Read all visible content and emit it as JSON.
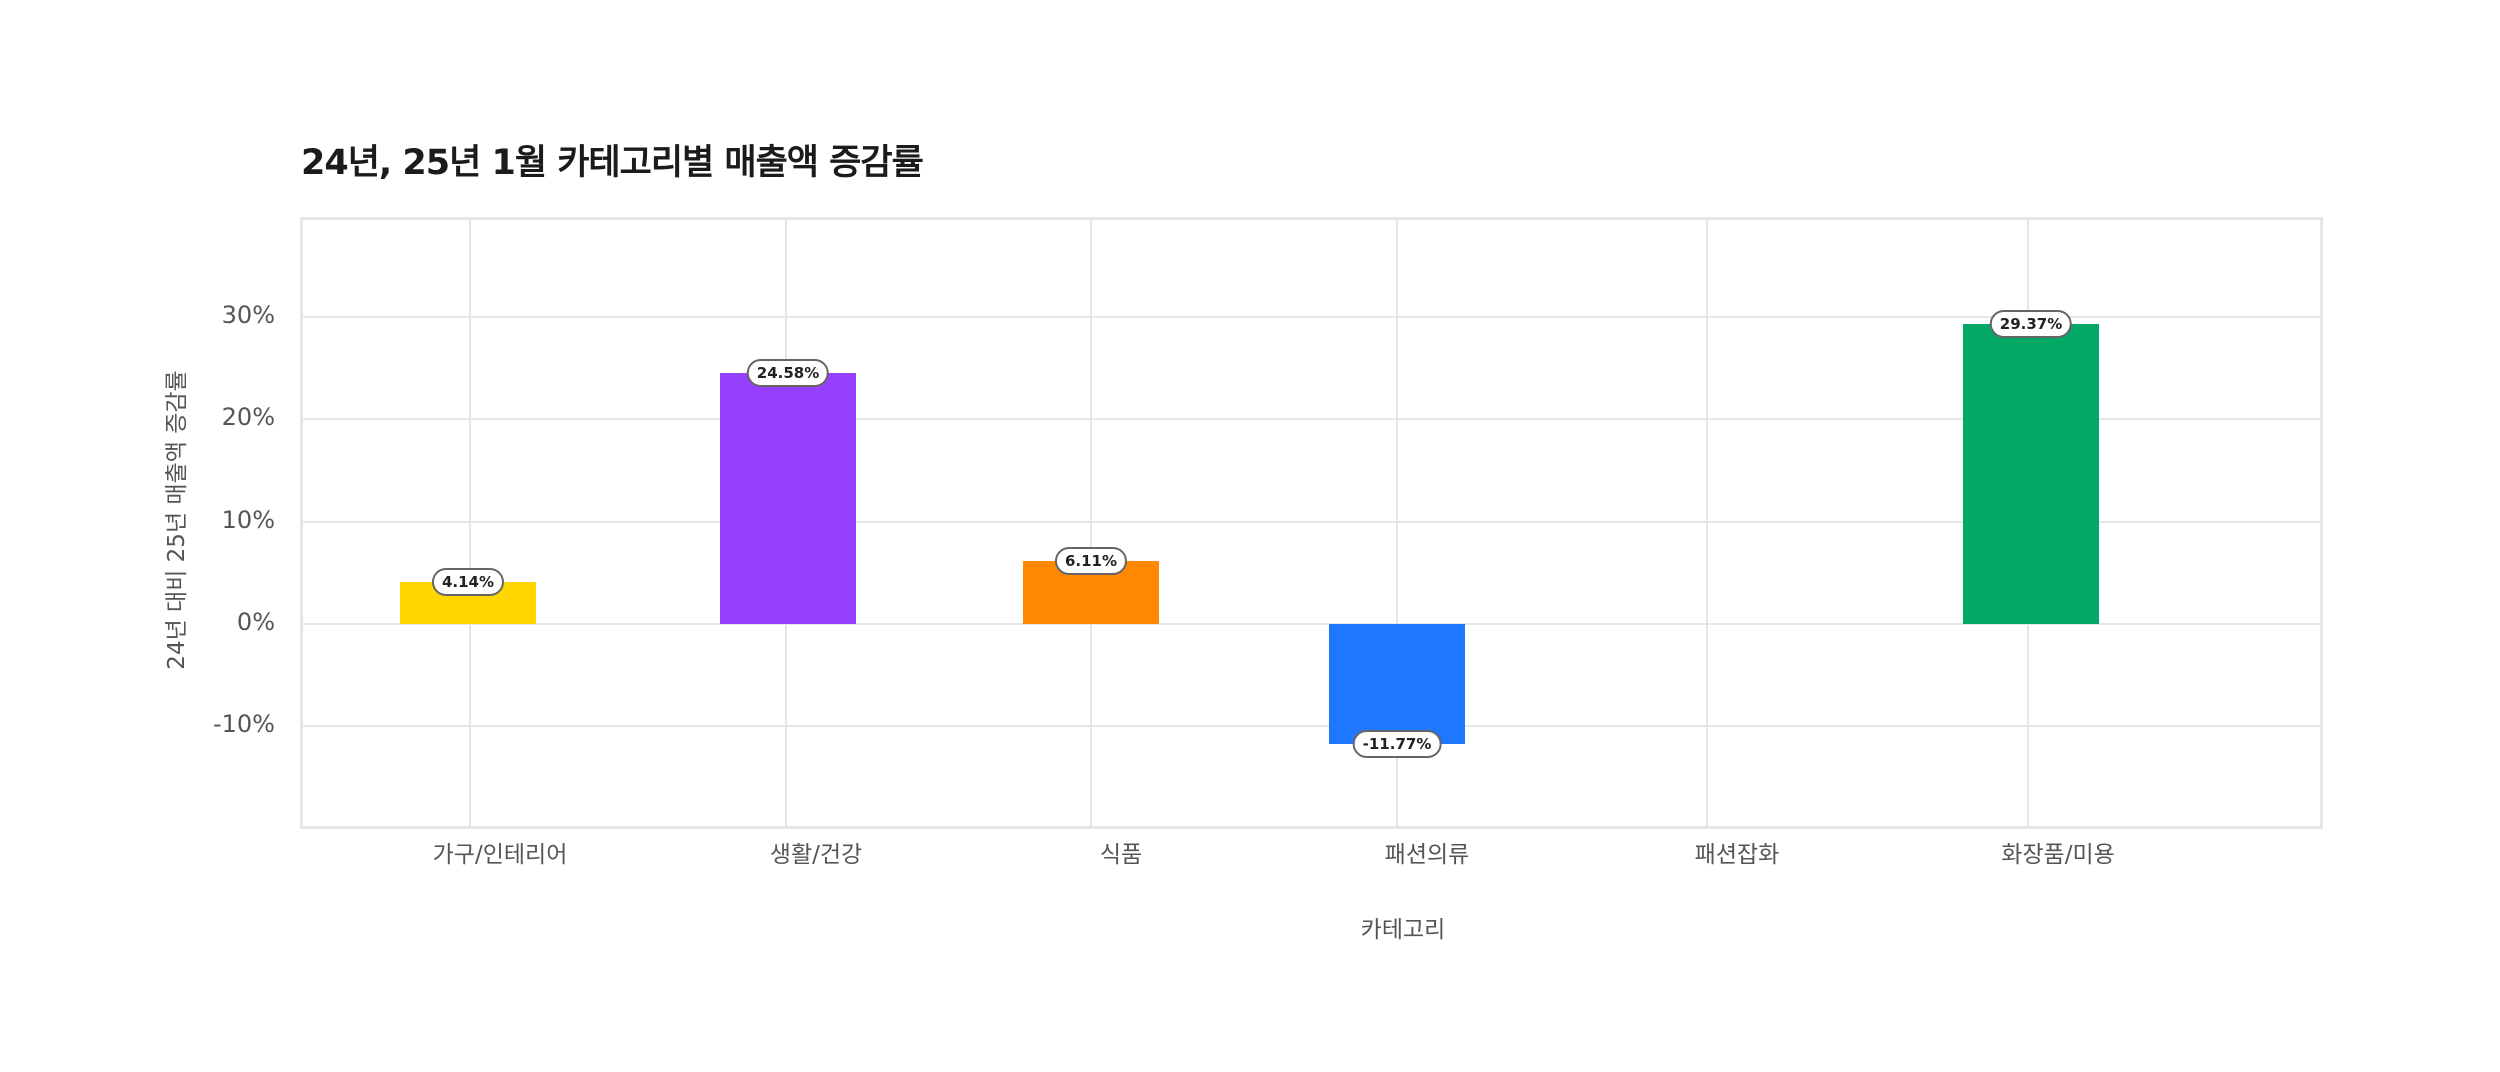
{
  "title": "24년, 25년 1월 카테고리별 매출액 증감률",
  "axes": {
    "ylabel": "24년 대비 25년 매출액 증감률",
    "xlabel": "카테고리",
    "yticks": [
      "30%",
      "20%",
      "10%",
      "0%",
      "-10%"
    ]
  },
  "categories": [
    "가구/인테리어",
    "생활/건강",
    "식품",
    "패션의류",
    "패션잡화",
    "화장품/미용"
  ],
  "bars": [
    {
      "category": "가구/인테리어",
      "value": 4.14,
      "label": "4.14%",
      "color": "#FFD600"
    },
    {
      "category": "생활/건강",
      "value": 24.58,
      "label": "24.58%",
      "color": "#9640FF"
    },
    {
      "category": "식품",
      "value": 6.11,
      "label": "6.11%",
      "color": "#FF8800"
    },
    {
      "category": "패션의류",
      "value": -11.77,
      "label": "-11.77%",
      "color": "#1E77FF"
    },
    {
      "category": "화장품/미용",
      "value": 29.37,
      "label": "29.37%",
      "color": "#03A866"
    }
  ],
  "chart_data": {
    "type": "bar",
    "title": "24년, 25년 1월 카테고리별 매출액 증감률",
    "xlabel": "카테고리",
    "ylabel": "24년 대비 25년 매출액 증감률",
    "categories": [
      "가구/인테리어",
      "생활/건강",
      "식품",
      "패션의류",
      "패션잡화",
      "화장품/미용"
    ],
    "values": [
      4.14,
      24.58,
      6.11,
      -11.77,
      null,
      29.37
    ],
    "data_labels": [
      "4.14%",
      "24.58%",
      "6.11%",
      "-11.77%",
      "",
      "29.37%"
    ],
    "colors": [
      "#FFD600",
      "#9640FF",
      "#FF8800",
      "#1E77FF",
      null,
      "#03A866"
    ],
    "yticks": [
      -10,
      0,
      10,
      20,
      30
    ],
    "ytick_format": "percent",
    "ylim": [
      -20,
      39
    ],
    "grid": true,
    "legend": "none"
  }
}
